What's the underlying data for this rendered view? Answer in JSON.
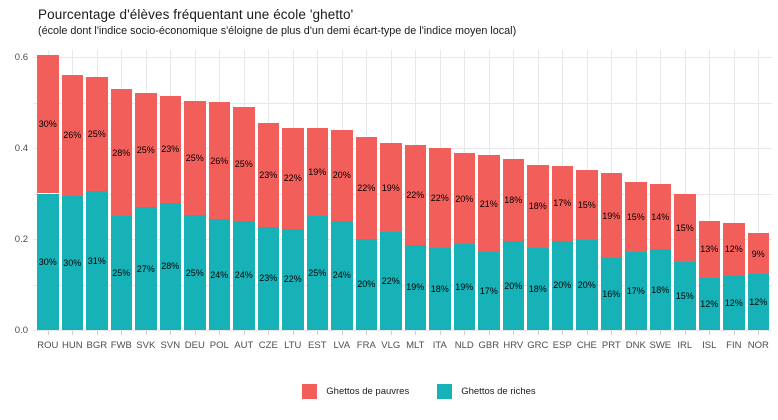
{
  "title": "Pourcentage d'élèves fréquentant une école 'ghetto'",
  "subtitle": "(école dont l'indice socio-économique s'éloigne de plus d'un demi écart-type de l'indice moyen local)",
  "colors": {
    "pauvres": "#f25f5a",
    "riches": "#17b2b8",
    "grid": "#e8e8e8",
    "axis_text": "#4d4d4d",
    "bar_label_text": "#000000",
    "background": "#ffffff"
  },
  "y_axis": {
    "tick_labels": [
      "0.0",
      "0.2",
      "0.4",
      "0.6"
    ],
    "tick_values": [
      0.0,
      0.2,
      0.4,
      0.6
    ]
  },
  "legend": {
    "items": [
      {
        "label": "Ghettos de pauvres",
        "color_key": "pauvres"
      },
      {
        "label": "Ghettos de riches",
        "color_key": "riches"
      }
    ]
  },
  "chart_data": {
    "type": "bar",
    "stacked": true,
    "title": "Pourcentage d'élèves fréquentant une école 'ghetto'",
    "subtitle": "(école dont l'indice socio-économique s'éloigne de plus d'un demi écart-type de l'indice moyen local)",
    "xlabel": "",
    "ylabel": "",
    "ylim": [
      0,
      0.62
    ],
    "yticks": [
      0.0,
      0.2,
      0.4,
      0.6
    ],
    "gridlines_every": 0.1,
    "grid": true,
    "legend_position": "bottom",
    "categories": [
      "ROU",
      "HUN",
      "BGR",
      "FWB",
      "SVK",
      "SVN",
      "DEU",
      "POL",
      "AUT",
      "CZE",
      "LTU",
      "EST",
      "LVA",
      "FRA",
      "VLG",
      "MLT",
      "ITA",
      "NLD",
      "GBR",
      "HRV",
      "GRC",
      "ESP",
      "CHE",
      "PRT",
      "DNK",
      "SWE",
      "IRL",
      "ISL",
      "FIN",
      "NOR"
    ],
    "series": [
      {
        "name": "Ghettos de pauvres",
        "unit": "percent",
        "values": [
          30.5,
          26.5,
          25.0,
          28.0,
          25.0,
          23.4,
          25.2,
          25.8,
          25.0,
          22.8,
          22.3,
          19.4,
          20.0,
          22.4,
          19.4,
          21.9,
          21.9,
          20.1,
          21.3,
          18.0,
          18.1,
          16.5,
          15.4,
          18.7,
          15.4,
          14.2,
          15.1,
          12.5,
          11.8,
          9.1
        ],
        "labels": [
          "30%",
          "26%",
          "25%",
          "28%",
          "25%",
          "23%",
          "25%",
          "26%",
          "25%",
          "23%",
          "22%",
          "19%",
          "20%",
          "22%",
          "19%",
          "22%",
          "22%",
          "20%",
          "21%",
          "18%",
          "18%",
          "17%",
          "15%",
          "19%",
          "15%",
          "14%",
          "15%",
          "13%",
          "12%",
          "9%"
        ]
      },
      {
        "name": "Ghettos de riches",
        "unit": "percent",
        "values": [
          30.0,
          29.5,
          30.5,
          25.0,
          27.0,
          28.0,
          25.2,
          24.3,
          24.0,
          22.7,
          22.2,
          25.0,
          24.0,
          20.1,
          21.6,
          18.7,
          18.1,
          18.8,
          17.1,
          19.5,
          18.1,
          19.6,
          19.7,
          15.8,
          17.2,
          17.8,
          14.9,
          11.5,
          11.8,
          12.2
        ],
        "labels": [
          "30%",
          "30%",
          "31%",
          "25%",
          "27%",
          "28%",
          "25%",
          "24%",
          "24%",
          "23%",
          "22%",
          "25%",
          "24%",
          "20%",
          "22%",
          "19%",
          "18%",
          "19%",
          "17%",
          "20%",
          "18%",
          "20%",
          "20%",
          "16%",
          "17%",
          "18%",
          "15%",
          "12%",
          "12%",
          "12%"
        ]
      }
    ]
  }
}
